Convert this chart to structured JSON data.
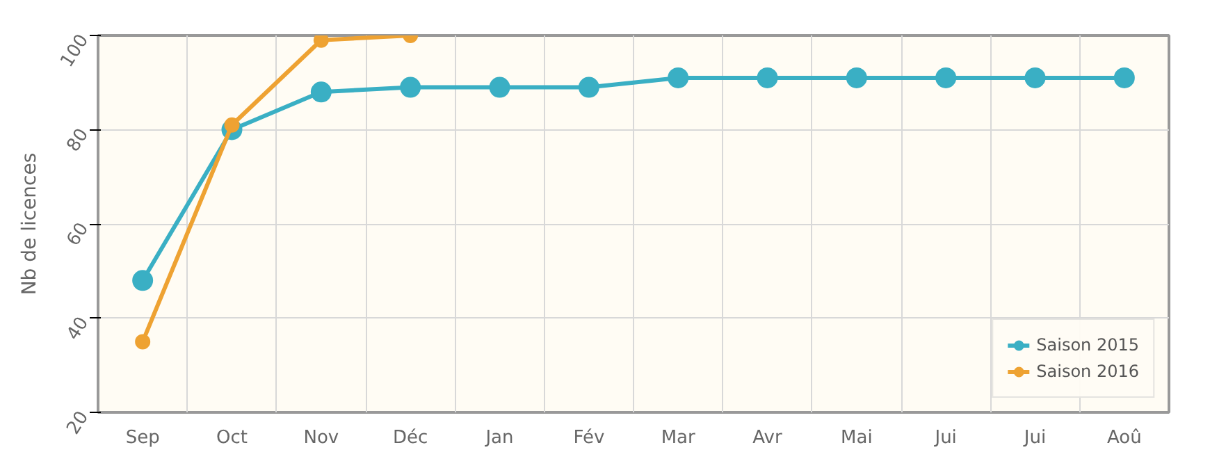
{
  "chart_data": {
    "type": "line",
    "ylabel": "Nb de licences",
    "categories": [
      "Sep",
      "Oct",
      "Nov",
      "Déc",
      "Jan",
      "Fév",
      "Mar",
      "Avr",
      "Mai",
      "Jui",
      "Jui",
      "Aoû"
    ],
    "series": [
      {
        "name": "Saison 2015",
        "color": "#3aafc4",
        "values": [
          48,
          80,
          88,
          89,
          89,
          89,
          91,
          91,
          91,
          91,
          91,
          91
        ]
      },
      {
        "name": "Saison 2016",
        "color": "#eea232",
        "values": [
          35,
          81,
          99,
          100,
          null,
          null,
          null,
          null,
          null,
          null,
          null,
          null
        ]
      }
    ],
    "ylim": [
      20,
      100
    ],
    "yticks": [
      20,
      40,
      60,
      80,
      100
    ],
    "grid": true,
    "legend": "bottom right",
    "marker": "circle",
    "line_style": "solid"
  }
}
